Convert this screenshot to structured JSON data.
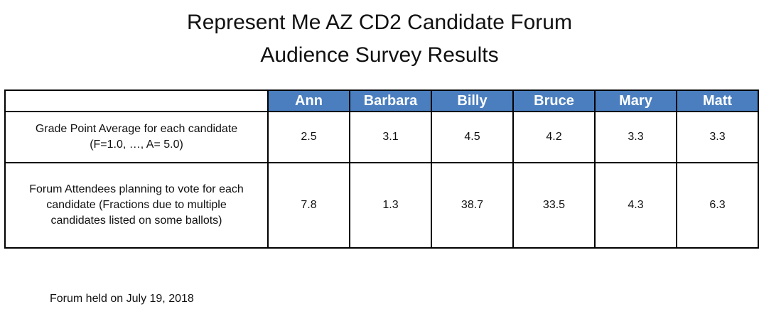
{
  "title": {
    "line1": "Represent Me AZ CD2 Candidate Forum",
    "line2": "Audience Survey Results"
  },
  "table": {
    "candidates": [
      "Ann",
      "Barbara",
      "Billy",
      "Bruce",
      "Mary",
      "Matt"
    ],
    "rows": [
      {
        "label_line1": "Grade Point Average for each candidate",
        "label_line2": "(F=1.0, …, A= 5.0)",
        "values": [
          "2.5",
          "3.1",
          "4.5",
          "4.2",
          "3.3",
          "3.3"
        ]
      },
      {
        "label_line1": "Forum Attendees planning to vote for each",
        "label_line2": "candidate  (Fractions due to multiple",
        "label_line3": "candidates listed on some ballots)",
        "values": [
          "7.8",
          "1.3",
          "38.7",
          "33.5",
          "4.3",
          "6.3"
        ]
      }
    ]
  },
  "footnote": "Forum held on July 19, 2018",
  "colors": {
    "header_fill": "#4a7ebf",
    "header_text": "#ffffff",
    "border": "#000000"
  }
}
